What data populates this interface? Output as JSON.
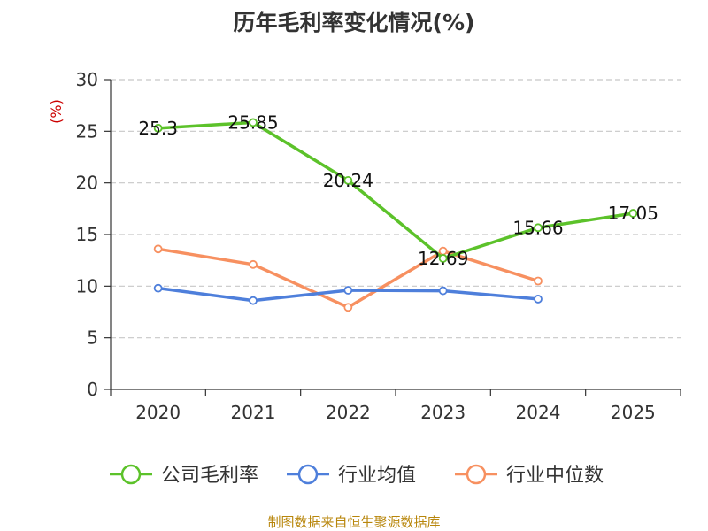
{
  "title": "历年毛利率变化情况(%)",
  "footer": "制图数据来自恒生聚源数据库",
  "chart_data": {
    "type": "line",
    "title": "历年毛利率变化情况(%)",
    "ylabel": "(%)",
    "xlabel": "",
    "ylim": [
      0,
      30
    ],
    "yticks": [
      0,
      5,
      10,
      15,
      20,
      25,
      30
    ],
    "categories": [
      "2020",
      "2021",
      "2022",
      "2023",
      "2024",
      "2025"
    ],
    "grid": true,
    "legend_position": "bottom",
    "series": [
      {
        "name": "公司毛利率",
        "color": "#5cc22a",
        "values": [
          25.3,
          25.85,
          20.24,
          12.69,
          15.66,
          17.05
        ],
        "labels": [
          "25.3",
          "25.85",
          "20.24",
          "12.69",
          "15.66",
          "17.05"
        ]
      },
      {
        "name": "行业均值",
        "color": "#4e7fdb",
        "values": [
          9.8,
          8.6,
          9.6,
          9.55,
          8.75,
          null
        ]
      },
      {
        "name": "行业中位数",
        "color": "#f79060",
        "values": [
          13.6,
          12.1,
          7.95,
          13.4,
          10.5,
          null
        ]
      }
    ]
  }
}
